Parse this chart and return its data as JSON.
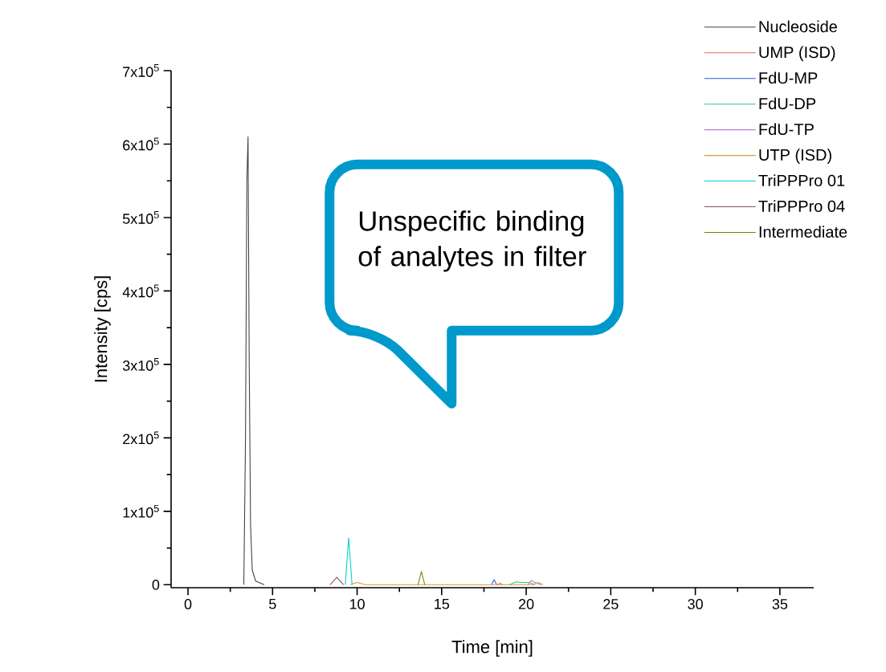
{
  "chart_data": {
    "type": "line",
    "xlabel": "Time [min]",
    "ylabel": "Intensity [cps]",
    "annotations": [
      "Unspecific binding of analytes in filter"
    ],
    "xlim": [
      -1,
      37
    ],
    "xticks": [
      0,
      5,
      10,
      15,
      20,
      25,
      30,
      35
    ],
    "ylim": [
      -4000,
      700000
    ],
    "yticks": [
      0,
      {
        "value": 100000,
        "label": "1x10$^{5}$"
      },
      {
        "value": 200000,
        "label": "2x10$^{5}$"
      },
      {
        "value": 300000,
        "label": "3x10$^{5}$"
      },
      {
        "value": 400000,
        "label": "4x10$^{5}$"
      },
      {
        "value": 500000,
        "label": "5x10$^{5}$"
      },
      {
        "value": 600000,
        "label": "6x10$^{5}$"
      },
      {
        "value": 700000,
        "label": "7x10$^{5}$"
      }
    ],
    "legend": "top right",
    "marker": "none",
    "series": [
      {
        "name": "Nucleoside",
        "color": "#404040",
        "x": [
          3.3,
          3.4,
          3.48,
          3.55,
          3.62,
          3.7,
          3.8,
          4.0,
          4.5
        ],
        "values": [
          0,
          200000,
          550000,
          610000,
          300000,
          80000,
          20000,
          5000,
          0
        ]
      },
      {
        "name": "UMP (ISD)",
        "color": "#f06060",
        "x": [
          18.3,
          18.45,
          18.6
        ],
        "values": [
          0,
          2000,
          0
        ]
      },
      {
        "name": "FdU-MP",
        "color": "#2060e0",
        "x": [
          17.95,
          18.1,
          18.25
        ],
        "values": [
          0,
          7000,
          0
        ]
      },
      {
        "name": "FdU-DP",
        "color": "#40c080",
        "x": [
          19.0,
          19.4,
          19.8,
          20.2,
          20.5
        ],
        "values": [
          0,
          4000,
          3000,
          3000,
          0
        ]
      },
      {
        "name": "FdU-TP",
        "color": "#b080e0",
        "x": [
          20.1,
          20.3,
          20.6,
          20.9
        ],
        "values": [
          0,
          6000,
          2000,
          0
        ]
      },
      {
        "name": "UTP (ISD)",
        "color": "#d0a030",
        "x": [
          9.6,
          10.0,
          10.5,
          20.4,
          20.7,
          21.0
        ],
        "values": [
          0,
          3000,
          0,
          0,
          3000,
          0
        ]
      },
      {
        "name": "TriPPPro 01",
        "color": "#00d0d0",
        "x": [
          9.3,
          9.5,
          9.7
        ],
        "values": [
          0,
          64000,
          0
        ]
      },
      {
        "name": "TriPPPro 04",
        "color": "#905050",
        "x": [
          8.4,
          8.8,
          9.2
        ],
        "values": [
          0,
          10000,
          0
        ]
      },
      {
        "name": "Intermediate",
        "color": "#808000",
        "x": [
          13.6,
          13.8,
          14.0
        ],
        "values": [
          0,
          18000,
          0
        ]
      }
    ]
  }
}
